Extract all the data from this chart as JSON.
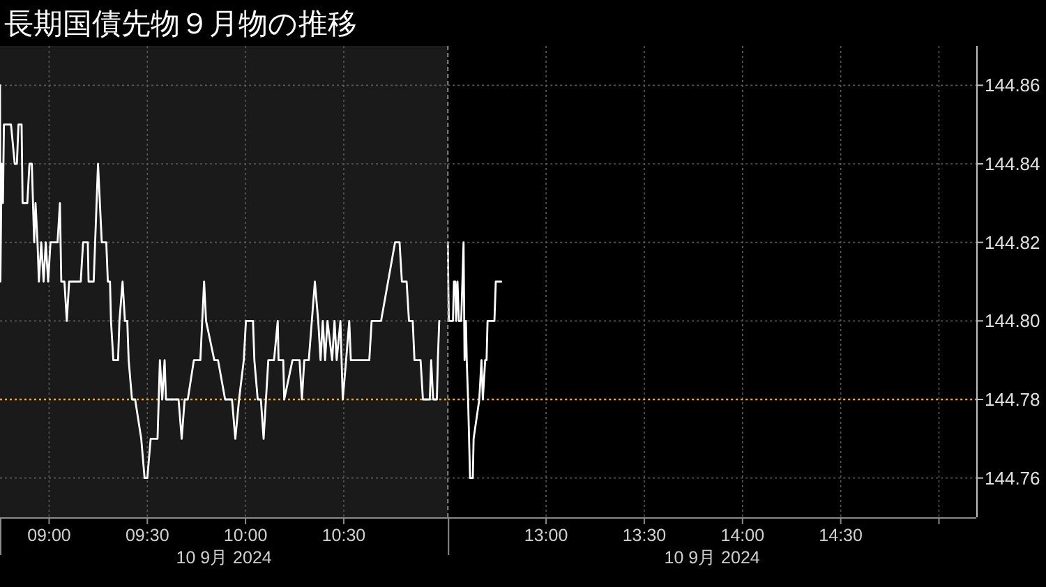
{
  "chart_data": [
    {
      "type": "line",
      "title": "長期国債先物９月物の推移",
      "xlabel": "10 9月 2024",
      "xlim": [
        8.75,
        11.03
      ],
      "xticks": [
        {
          "value": 9,
          "label": "09:00"
        },
        {
          "value": 9.5,
          "label": "09:30"
        },
        {
          "value": 10,
          "label": "10:00"
        },
        {
          "value": 10.5,
          "label": "10:30"
        }
      ],
      "ylim": [
        144.75,
        144.87
      ],
      "yticks": [
        144.76,
        144.78,
        144.8,
        144.82,
        144.84,
        144.86
      ],
      "tick_labels": "x",
      "grid": true,
      "ref_lines": [
        {
          "axis": "y",
          "value": 144.78,
          "color": "#f5a623",
          "line_style": "dotted"
        }
      ],
      "series": [
        {
          "color": "#ffffff",
          "x": [
            8.75,
            8.752,
            8.758,
            8.765,
            8.77,
            8.806,
            8.825,
            8.836,
            8.844,
            8.86,
            8.865,
            8.889,
            8.9,
            8.912,
            8.924,
            8.931,
            8.941,
            8.948,
            8.96,
            8.972,
            8.983,
            8.995,
            9.007,
            9.019,
            9.043,
            9.055,
            9.062,
            9.078,
            9.09,
            9.102,
            9.161,
            9.173,
            9.197,
            9.201,
            9.227,
            9.249,
            9.268,
            9.291,
            9.299,
            9.31,
            9.315,
            9.327,
            9.351,
            9.358,
            9.374,
            9.386,
            9.398,
            9.405,
            9.422,
            9.438,
            9.469,
            9.486,
            9.5,
            9.517,
            9.552,
            9.564,
            9.576,
            9.588,
            9.595,
            9.659,
            9.675,
            9.69,
            9.706,
            9.737,
            9.77,
            9.789,
            9.799,
            9.841,
            9.86,
            9.896,
            9.931,
            9.948,
            9.967,
            9.991,
            10.002,
            10.038,
            10.045,
            10.062,
            10.078,
            10.092,
            10.116,
            10.145,
            10.164,
            10.168,
            10.192,
            10.197,
            10.239,
            10.275,
            10.287,
            10.299,
            10.322,
            10.353,
            10.37,
            10.382,
            10.393,
            10.405,
            10.417,
            10.441,
            10.453,
            10.464,
            10.483,
            10.495,
            10.512,
            10.528,
            10.536,
            10.63,
            10.642,
            10.69,
            10.761,
            10.784,
            10.796,
            10.82,
            10.832,
            10.851,
            10.86,
            10.891,
            10.903,
            10.938,
            10.945,
            10.955,
            10.974,
            10.979,
            10.986
          ],
          "values": [
            144.86,
            144.81,
            144.84,
            144.83,
            144.85,
            144.85,
            144.84,
            144.84,
            144.85,
            144.85,
            144.83,
            144.83,
            144.84,
            144.84,
            144.82,
            144.83,
            144.82,
            144.81,
            144.82,
            144.81,
            144.82,
            144.81,
            144.82,
            144.82,
            144.82,
            144.83,
            144.81,
            144.81,
            144.8,
            144.81,
            144.81,
            144.82,
            144.82,
            144.81,
            144.81,
            144.84,
            144.82,
            144.82,
            144.81,
            144.81,
            144.8,
            144.79,
            144.79,
            144.8,
            144.81,
            144.8,
            144.8,
            144.79,
            144.78,
            144.78,
            144.77,
            144.76,
            144.76,
            144.77,
            144.77,
            144.79,
            144.78,
            144.79,
            144.78,
            144.78,
            144.77,
            144.78,
            144.78,
            144.79,
            144.79,
            144.81,
            144.8,
            144.79,
            144.79,
            144.78,
            144.78,
            144.77,
            144.78,
            144.79,
            144.8,
            144.8,
            144.79,
            144.78,
            144.78,
            144.77,
            144.79,
            144.79,
            144.8,
            144.79,
            144.79,
            144.78,
            144.79,
            144.79,
            144.78,
            144.79,
            144.79,
            144.81,
            144.8,
            144.79,
            144.8,
            144.79,
            144.8,
            144.79,
            144.8,
            144.79,
            144.8,
            144.78,
            144.79,
            144.8,
            144.79,
            144.79,
            144.8,
            144.8,
            144.82,
            144.82,
            144.81,
            144.81,
            144.8,
            144.8,
            144.79,
            144.79,
            144.78,
            144.78,
            144.79,
            144.78,
            144.78,
            144.79,
            144.8
          ]
        }
      ]
    },
    {
      "type": "line",
      "xlabel": "10 9月 2024",
      "xlim": [
        12.5,
        15.19
      ],
      "xticks": [
        {
          "value": 13,
          "label": "13:00"
        },
        {
          "value": 13.5,
          "label": "13:30"
        },
        {
          "value": 14,
          "label": "14:00"
        },
        {
          "value": 14.5,
          "label": "14:30"
        },
        {
          "value": 15,
          "label": null
        }
      ],
      "ylim": [
        144.75,
        144.87
      ],
      "yticks": [
        144.76,
        144.78,
        {
          "value": 144.8,
          "label": "144.80"
        },
        144.82,
        144.84,
        144.86
      ],
      "grid": true,
      "ref_lines": [
        {
          "axis": "y",
          "value": 144.78,
          "color": "#f5a623",
          "line_style": "dotted"
        }
      ],
      "series": [
        {
          "color": "#ffffff",
          "x": [
            12.5,
            12.502,
            12.505,
            12.526,
            12.531,
            12.538,
            12.542,
            12.549,
            12.556,
            12.568,
            12.58,
            12.585,
            12.592,
            12.596,
            12.603,
            12.613,
            12.627,
            12.631,
            12.66,
            12.671,
            12.678,
            12.69,
            12.697,
            12.702,
            12.737,
            12.744,
            12.772
          ],
          "values": [
            144.82,
            144.81,
            144.8,
            144.8,
            144.81,
            144.81,
            144.8,
            144.81,
            144.8,
            144.8,
            144.82,
            144.79,
            144.8,
            144.79,
            144.78,
            144.76,
            144.76,
            144.77,
            144.78,
            144.79,
            144.78,
            144.79,
            144.79,
            144.8,
            144.8,
            144.81,
            144.81
          ]
        }
      ]
    }
  ]
}
